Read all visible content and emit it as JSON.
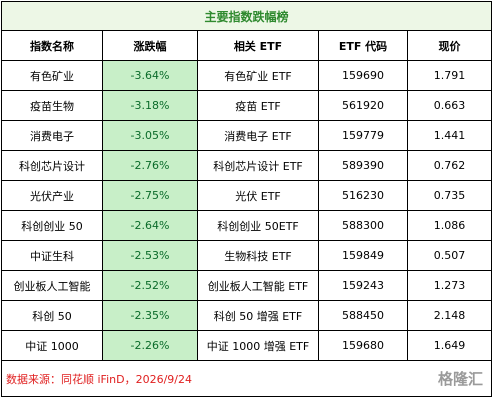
{
  "title": "主要指数跌幅榜",
  "table": {
    "header": [
      "指数名称",
      "涨跌幅",
      "相关 ETF",
      "ETF 代码",
      "现价"
    ],
    "rows": [
      [
        "有色矿业",
        "-3.64%",
        "有色矿业 ETF",
        "159690",
        "1.791"
      ],
      [
        "疫苗生物",
        "-3.18%",
        "疫苗 ETF",
        "561920",
        "0.663"
      ],
      [
        "消费电子",
        "-3.05%",
        "消费电子 ETF",
        "159779",
        "1.441"
      ],
      [
        "科创芯片设计",
        "-2.76%",
        "科创芯片设计 ETF",
        "589390",
        "0.762"
      ],
      [
        "光伏产业",
        "-2.75%",
        "光伏 ETF",
        "516230",
        "0.735"
      ],
      [
        "科创创业 50",
        "-2.64%",
        "科创创业 50ETF",
        "588300",
        "1.086"
      ],
      [
        "中证生科",
        "-2.53%",
        "生物科技 ETF",
        "159849",
        "0.507"
      ],
      [
        "创业板人工智能",
        "-2.52%",
        "创业板人工智能 ETF",
        "159243",
        "1.273"
      ],
      [
        "科创 50",
        "-2.35%",
        "科创 50 增强 ETF",
        "588450",
        "2.148"
      ],
      [
        "中证 1000",
        "-2.26%",
        "中证 1000 增强 ETF",
        "159680",
        "1.649"
      ]
    ]
  },
  "footer": {
    "source": "数据来源：同花顺 iFinD，2026/9/24",
    "watermark": "格隆汇"
  }
}
